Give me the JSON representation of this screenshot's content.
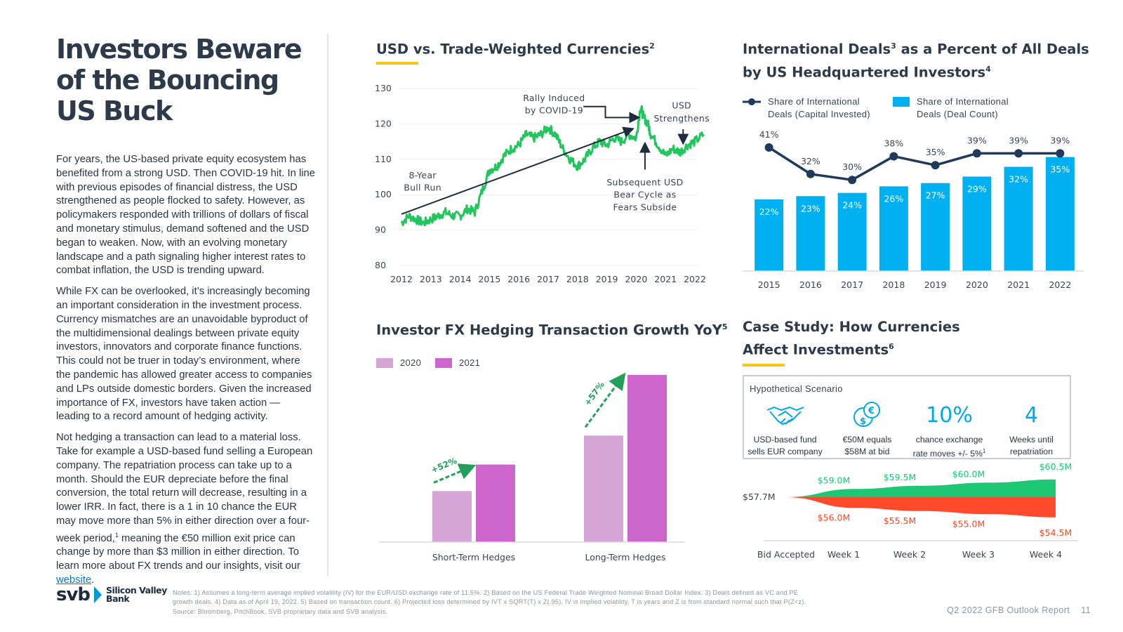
{
  "page": {
    "title_lines": [
      "Investors Beware",
      "of the Bouncing",
      "US Buck"
    ],
    "paragraphs": [
      "For years, the US-based private equity ecosystem has benefited from a strong USD. Then COVID-19 hit. In line with previous episodes of financial distress, the USD strengthened as people flocked to safety. However, as policymakers responded with trillions of dollars of fiscal and monetary stimulus, demand softened and the USD began to weaken. Now, with an evolving monetary landscape and a path signaling higher interest rates to combat inflation, the USD is trending upward.",
      "While FX can be overlooked, it’s increasingly becoming an important consideration in the investment process. Currency mismatches are an unavoidable byproduct of the multidimensional dealings between private equity investors, innovators and corporate finance functions. This could not be truer in today’s environment, where the pandemic has allowed greater access to companies and LPs outside domestic borders. Given the increased importance of FX, investors have taken action — leading to a record amount of hedging activity."
    ],
    "para3_main": "Not hedging a transaction can lead to a material loss. Take for example a USD-based fund selling a European company. The repatriation process can take up to a month. Should the EUR depreciate before the final conversion, the total return will decrease, resulting in a lower IRR. In fact, there is a 1 in 10 chance the EUR may move more than 5% in either direction over a four-week period,",
    "para3_sup": "1",
    "para3_tail": " meaning the €50 million exit price can change by more than $3 million in either direction. To learn more about FX trends and our insights, visit our ",
    "para3_link": "website",
    "para3_end": "."
  },
  "logo": {
    "mark": "svb",
    "name_line1": "Silicon Valley",
    "name_line2": "Bank"
  },
  "notes": [
    "Notes: 1) Assumes a long-term average implied volatility (IV) for the EUR/USD exchange rate of 11.5%. 2) Based on the US Federal Trade Weighted Nominal Broad Dollar Index. 3) Deals defined as VC and PE",
    "growth deals. 4) Data as of April 19, 2022. 5) Based on transaction count. 6) Projected loss determined by IVT x SQRT(T) x Z(.95), IV is implied volatility, T is years and Z is from standard normal such that P(Z<z).",
    "Source: Bloomberg, PitchBook, SVB proprietary data and SVB analysis."
  ],
  "footer": {
    "report": "Q2 2022 GFB Outlook Report",
    "page_number": "11"
  },
  "colors": {
    "gold": "#f5c518",
    "usd_line": "#22c55e",
    "arrow": "#1e2d3d",
    "bar_blue": "#00b0f0",
    "line_navy": "#1f3a5a",
    "bar_2020": "#d4a5d6",
    "bar_2021": "#cc66cc",
    "hedge_arrow": "#22a05a",
    "gain_green": "#1ec773",
    "loss_red": "#ff4b2b"
  },
  "sections": {
    "usd_title": "USD vs. Trade-Weighted Currencies",
    "usd_title_sup": "2",
    "intl_title_l1": "International Deals",
    "intl_title_sup1": "3",
    "intl_title_l1b": " as a Percent of All Deals",
    "intl_title_l2": "by US Headquartered Investors",
    "intl_title_sup2": "4",
    "hedge_title": "Investor FX Hedging Transaction Growth YoY",
    "hedge_title_sup": "5",
    "case_title_l1": "Case Study: How Currencies",
    "case_title_l2": "Affect Investments",
    "case_title_sup": "6"
  },
  "scenario": {
    "heading": "Hypothetical Scenario",
    "items": [
      {
        "icon": "handshake-icon",
        "caption_l1": "USD-based fund",
        "caption_l2": "sells EUR company"
      },
      {
        "icon": "currency-exchange-icon",
        "caption_l1": "€50M equals",
        "caption_l2": "$58M at bid"
      },
      {
        "big": "10%",
        "caption_l1": "chance exchange",
        "caption_l2": "rate moves +/- 5%",
        "caption_sup": "1"
      },
      {
        "big": "4",
        "caption_l1": "Weeks until",
        "caption_l2": "repatriation"
      }
    ]
  },
  "chart_data": [
    {
      "id": "usd_index",
      "type": "line",
      "title": "USD vs. Trade-Weighted Currencies",
      "x": [
        2012.0,
        2012.25,
        2012.5,
        2012.75,
        2013.0,
        2013.25,
        2013.5,
        2013.75,
        2014.0,
        2014.25,
        2014.5,
        2014.75,
        2015.0,
        2015.25,
        2015.5,
        2015.75,
        2016.0,
        2016.25,
        2016.5,
        2016.75,
        2017.0,
        2017.25,
        2017.5,
        2017.75,
        2018.0,
        2018.25,
        2018.5,
        2018.75,
        2019.0,
        2019.25,
        2019.5,
        2019.75,
        2020.0,
        2020.15,
        2020.25,
        2020.4,
        2020.5,
        2020.75,
        2021.0,
        2021.25,
        2021.5,
        2021.75,
        2022.0,
        2022.3
      ],
      "y": [
        92,
        94,
        93,
        92,
        93,
        94,
        95,
        94,
        94,
        96,
        95,
        101,
        107,
        108,
        111,
        113,
        114,
        117,
        116,
        117,
        119,
        117,
        113,
        110,
        108,
        110,
        113,
        115,
        114,
        116,
        115,
        117,
        116,
        125,
        122,
        120,
        117,
        114,
        111,
        113,
        112,
        114,
        115,
        117
      ],
      "ylim": [
        80,
        130
      ],
      "yticks": [
        80,
        90,
        100,
        110,
        120,
        130
      ],
      "xticks": [
        "2012",
        "2013",
        "2014",
        "2015",
        "2016",
        "2017",
        "2018",
        "2019",
        "2020",
        "2021",
        "2022"
      ],
      "annotations": {
        "bull_l1": "8-Year",
        "bull_l2": "Bull Run",
        "covid_l1": "Rally Induced",
        "covid_l2": "by COVID-19",
        "usd_l1": "USD",
        "usd_l2": "Strengthens",
        "bear_l1": "Subsequent USD",
        "bear_l2": "Bear Cycle as",
        "bear_l3": "Fears Subside"
      }
    },
    {
      "id": "intl_deals",
      "type": "bar",
      "title": "International Deals as a Percent of All Deals by US Headquartered Investors",
      "categories": [
        "2015",
        "2016",
        "2017",
        "2018",
        "2019",
        "2020",
        "2021",
        "2022"
      ],
      "series": [
        {
          "name": "Share of International Deals (Deal Count)",
          "type": "bar",
          "values": [
            22,
            23,
            24,
            26,
            27,
            29,
            32,
            35
          ],
          "labels": [
            "22%",
            "23%",
            "24%",
            "26%",
            "27%",
            "29%",
            "32%",
            "35%"
          ]
        },
        {
          "name": "Share of International Deals (Capital Invested)",
          "type": "line",
          "values": [
            41,
            32,
            30,
            38,
            35,
            39,
            39,
            39
          ],
          "labels": [
            "41%",
            "32%",
            "30%",
            "38%",
            "35%",
            "39%",
            "39%",
            "39%"
          ]
        }
      ],
      "legend": {
        "line_l1": "Share of International",
        "line_l2": "Deals (Capital Invested)",
        "bar_l1": "Share of International",
        "bar_l2": "Deals (Deal Count)"
      },
      "ylim": [
        0,
        50
      ]
    },
    {
      "id": "hedging",
      "type": "bar",
      "title": "Investor FX Hedging Transaction Growth YoY",
      "categories": [
        "Short-Term Hedges",
        "Long-Term Hedges"
      ],
      "series": [
        {
          "name": "2020",
          "values": [
            100,
            100
          ]
        },
        {
          "name": "2021",
          "values": [
            152,
            157
          ]
        }
      ],
      "growth_labels": [
        "+52%",
        "+57%"
      ],
      "ylim": [
        0,
        240
      ]
    },
    {
      "id": "case_study",
      "type": "area",
      "title": "Case Study: How Currencies Affect Investments",
      "categories": [
        "Bid Accepted",
        "Week 1",
        "Week 2",
        "Week 3",
        "Week 4"
      ],
      "start_label": "$57.7M",
      "upper": [
        57.7,
        59.0,
        59.5,
        60.0,
        60.5
      ],
      "lower": [
        57.7,
        56.0,
        55.5,
        55.0,
        54.5
      ],
      "upper_labels": [
        "",
        "$59.0M",
        "$59.5M",
        "$60.0M",
        "$60.5M"
      ],
      "lower_labels": [
        "",
        "$56.0M",
        "$55.5M",
        "$55.0M",
        "$54.5M"
      ]
    }
  ]
}
